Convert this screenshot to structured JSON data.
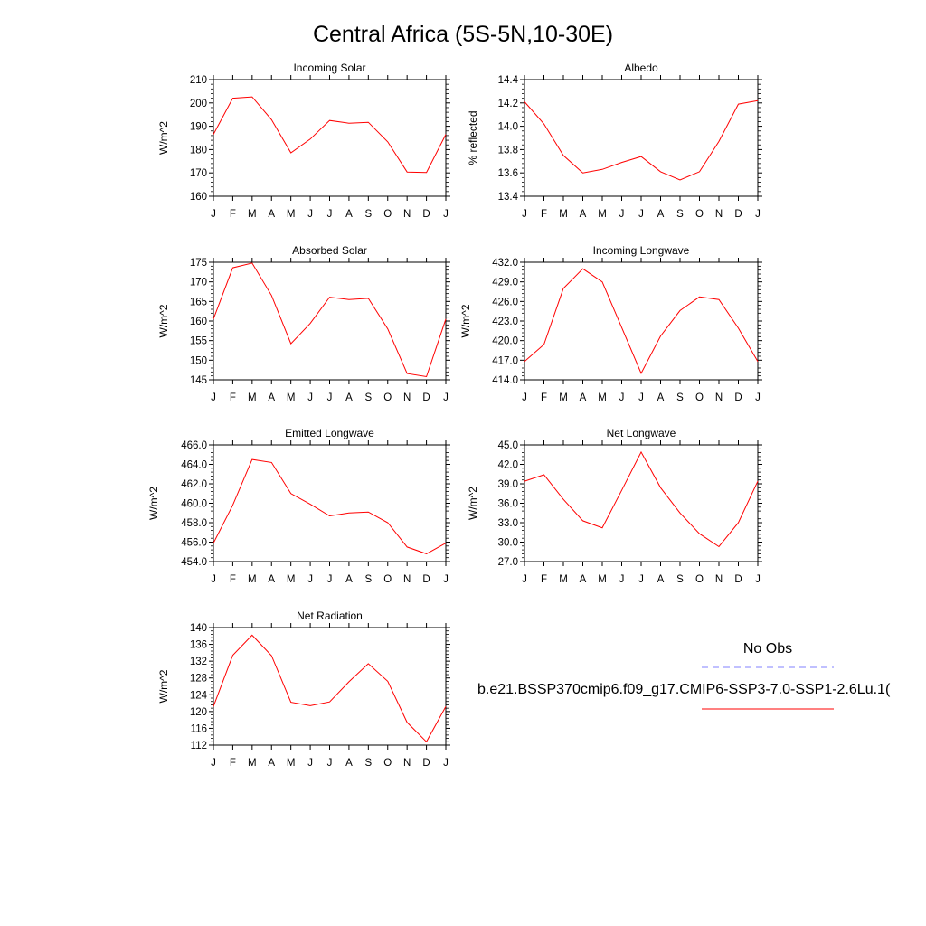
{
  "title": "Central Africa (5S-5N,10-30E)",
  "legend": {
    "obs_label": "No Obs",
    "obs_color": "#8080ff",
    "model_label": "b.e21.BSSP370cmip6.f09_g17.CMIP6-SSP3-7.0-SSP1-2.6Lu.1(",
    "model_color": "#ff0000"
  },
  "chart_data": [
    {
      "type": "line",
      "title": "Incoming Solar",
      "ylabel": "W/m^2",
      "x": [
        "J",
        "F",
        "M",
        "A",
        "M",
        "J",
        "J",
        "A",
        "S",
        "O",
        "N",
        "D",
        "J"
      ],
      "ylim": [
        160,
        210
      ],
      "yticks": [
        "160",
        "170",
        "180",
        "190",
        "200",
        "210"
      ],
      "series": [
        {
          "values": [
            186.5,
            202.0,
            202.6,
            192.8,
            178.6,
            184.5,
            192.5,
            191.3,
            191.7,
            183.3,
            170.4,
            170.2,
            186.5
          ],
          "color": "#ff0000"
        }
      ]
    },
    {
      "type": "line",
      "title": "Albedo",
      "ylabel": "% reflected",
      "x": [
        "J",
        "F",
        "M",
        "A",
        "M",
        "J",
        "J",
        "A",
        "S",
        "O",
        "N",
        "D",
        "J"
      ],
      "ylim": [
        13.4,
        14.4
      ],
      "yticks": [
        "13.4",
        "13.6",
        "13.8",
        "14.0",
        "14.2",
        "14.4"
      ],
      "series": [
        {
          "values": [
            14.21,
            14.02,
            13.75,
            13.6,
            13.63,
            13.69,
            13.74,
            13.61,
            13.54,
            13.61,
            13.87,
            14.19,
            14.22
          ],
          "color": "#ff0000"
        }
      ]
    },
    {
      "type": "line",
      "title": "Absorbed Solar",
      "ylabel": "W/m^2",
      "x": [
        "J",
        "F",
        "M",
        "A",
        "M",
        "J",
        "J",
        "A",
        "S",
        "O",
        "N",
        "D",
        "J"
      ],
      "ylim": [
        145,
        175
      ],
      "yticks": [
        "145",
        "150",
        "155",
        "160",
        "165",
        "170",
        "175"
      ],
      "series": [
        {
          "values": [
            160.5,
            173.6,
            174.8,
            166.5,
            154.2,
            159.4,
            166.1,
            165.5,
            165.8,
            158.0,
            146.6,
            145.8,
            160.5
          ],
          "color": "#ff0000"
        }
      ]
    },
    {
      "type": "line",
      "title": "Incoming Longwave",
      "ylabel": "W/m^2",
      "x": [
        "J",
        "F",
        "M",
        "A",
        "M",
        "J",
        "J",
        "A",
        "S",
        "O",
        "N",
        "D",
        "J"
      ],
      "ylim": [
        414.0,
        432.0
      ],
      "yticks": [
        "414.0",
        "417.0",
        "420.0",
        "423.0",
        "426.0",
        "429.0",
        "432.0"
      ],
      "series": [
        {
          "values": [
            416.8,
            419.4,
            428.0,
            431.0,
            429.0,
            422.0,
            415.0,
            420.7,
            424.6,
            426.7,
            426.3,
            421.9,
            416.8
          ],
          "color": "#ff0000"
        }
      ]
    },
    {
      "type": "line",
      "title": "Emitted Longwave",
      "ylabel": "W/m^2",
      "x": [
        "J",
        "F",
        "M",
        "A",
        "M",
        "J",
        "J",
        "A",
        "S",
        "O",
        "N",
        "D",
        "J"
      ],
      "ylim": [
        454.0,
        466.0
      ],
      "yticks": [
        "454.0",
        "456.0",
        "458.0",
        "460.0",
        "462.0",
        "464.0",
        "466.0"
      ],
      "series": [
        {
          "values": [
            455.9,
            459.8,
            464.5,
            464.2,
            461.0,
            459.9,
            458.7,
            459.0,
            459.1,
            458.0,
            455.5,
            454.8,
            455.9
          ],
          "color": "#ff0000"
        }
      ]
    },
    {
      "type": "line",
      "title": "Net Longwave",
      "ylabel": "W/m^2",
      "x": [
        "J",
        "F",
        "M",
        "A",
        "M",
        "J",
        "J",
        "A",
        "S",
        "O",
        "N",
        "D",
        "J"
      ],
      "ylim": [
        27.0,
        45.0
      ],
      "yticks": [
        "27.0",
        "30.0",
        "33.0",
        "36.0",
        "39.0",
        "42.0",
        "45.0"
      ],
      "series": [
        {
          "values": [
            39.4,
            40.4,
            36.6,
            33.3,
            32.2,
            38.0,
            43.9,
            38.4,
            34.5,
            31.3,
            29.3,
            33.0,
            39.4
          ],
          "color": "#ff0000"
        }
      ]
    },
    {
      "type": "line",
      "title": "Net Radiation",
      "ylabel": "W/m^2",
      "x": [
        "J",
        "F",
        "M",
        "A",
        "M",
        "J",
        "J",
        "A",
        "S",
        "O",
        "N",
        "D",
        "J"
      ],
      "ylim": [
        112,
        140
      ],
      "yticks": [
        "112",
        "116",
        "120",
        "124",
        "128",
        "132",
        "136",
        "140"
      ],
      "series": [
        {
          "values": [
            121.2,
            133.4,
            138.2,
            133.3,
            122.2,
            121.4,
            122.3,
            127.1,
            131.4,
            127.2,
            117.4,
            112.8,
            121.2
          ],
          "color": "#ff0000"
        }
      ]
    }
  ]
}
